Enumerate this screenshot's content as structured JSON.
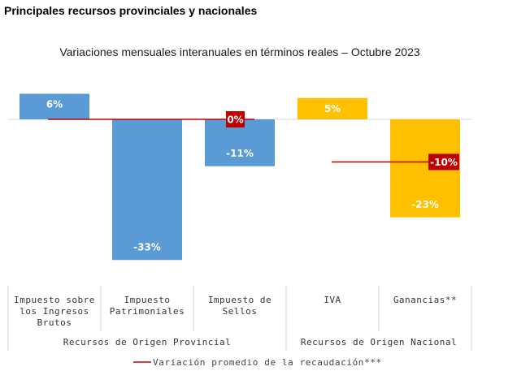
{
  "heading": "Principales recursos provinciales y nacionales",
  "chart_data": {
    "type": "bar",
    "title": "Variaciones mensuales interanuales en términos reales – Octubre 2023",
    "categories": [
      [
        "Impuesto sobre",
        "los Ingresos",
        "Brutos"
      ],
      [
        "Impuesto",
        "Patrimoniales"
      ],
      [
        "Impuesto de",
        "Sellos"
      ],
      [
        "IVA"
      ],
      [
        "Ganancias**"
      ]
    ],
    "values": [
      6,
      -33,
      -11,
      5,
      -23
    ],
    "value_labels": [
      "6%",
      "-33%",
      "-11%",
      "5%",
      "-23%"
    ],
    "bar_colors": [
      "#5b9bd5",
      "#5b9bd5",
      "#5b9bd5",
      "#ffc000",
      "#ffc000"
    ],
    "groups": [
      {
        "label": "Recursos de Origen Provincial",
        "categories": [
          0,
          1,
          2
        ]
      },
      {
        "label": "Recursos de Origen Nacional",
        "categories": [
          3,
          4
        ]
      }
    ],
    "average_lines": [
      {
        "group": 0,
        "value": 0,
        "label": "0%"
      },
      {
        "group": 1,
        "value": -10,
        "label": "-10%"
      }
    ],
    "average_color": "#c00000",
    "legend": {
      "label": "Variación promedio de la recaudación***",
      "position": "bottom"
    },
    "ylim": [
      -33,
      6
    ],
    "grid": false
  }
}
